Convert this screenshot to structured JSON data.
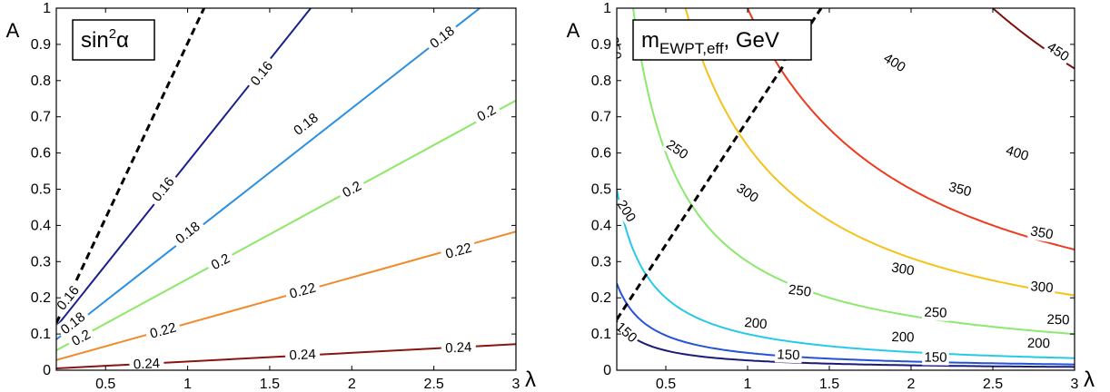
{
  "chart_data": [
    {
      "type": "contour",
      "title": "sin²α",
      "title_parts": {
        "base": "sin",
        "sup": "2",
        "tail": "α"
      },
      "xlabel": "λ",
      "ylabel": "A",
      "xlim": [
        0.2,
        3
      ],
      "ylim": [
        0,
        1
      ],
      "xticks": [
        "0.5",
        "1",
        "1.5",
        "2",
        "2.5",
        "3"
      ],
      "xtick_values": [
        0.5,
        1,
        1.5,
        2,
        2.5,
        3
      ],
      "yticks": [
        "0",
        "0.1",
        "0.2",
        "0.3",
        "0.4",
        "0.5",
        "0.6",
        "0.7",
        "0.8",
        "0.9",
        "1"
      ],
      "ytick_values": [
        0,
        0.1,
        0.2,
        0.3,
        0.4,
        0.5,
        0.6,
        0.7,
        0.8,
        0.9,
        1
      ],
      "dashed_boundary": [
        [
          0.2,
          0.13
        ],
        [
          1.1,
          1.0
        ]
      ],
      "contours": [
        {
          "level": "0.16",
          "color": "#1b1f8c",
          "points": [
            [
              0.2,
              0.12
            ],
            [
              1.75,
              1.0
            ]
          ],
          "labels": [
            {
              "text": "0.16",
              "x": 0.27,
              "y": 0.2
            },
            {
              "text": "0.16",
              "x": 0.85,
              "y": 0.5
            },
            {
              "text": "0.16",
              "x": 1.45,
              "y": 0.82
            }
          ]
        },
        {
          "level": "0.18",
          "color": "#2b8fe0",
          "points": [
            [
              0.2,
              0.085
            ],
            [
              2.78,
              1.0
            ]
          ],
          "labels": [
            {
              "text": "0.18",
              "x": 0.3,
              "y": 0.13
            },
            {
              "text": "0.18",
              "x": 1.0,
              "y": 0.38
            },
            {
              "text": "0.18",
              "x": 1.72,
              "y": 0.68
            },
            {
              "text": "0.18",
              "x": 2.55,
              "y": 0.92
            }
          ]
        },
        {
          "level": "0.2",
          "color": "#8de86a",
          "points": [
            [
              0.2,
              0.055
            ],
            [
              3.0,
              0.745
            ]
          ],
          "labels": [
            {
              "text": "0.2",
              "x": 0.35,
              "y": 0.09
            },
            {
              "text": "0.2",
              "x": 1.2,
              "y": 0.3
            },
            {
              "text": "0.2",
              "x": 2.0,
              "y": 0.5
            },
            {
              "text": "0.2",
              "x": 2.82,
              "y": 0.71
            }
          ]
        },
        {
          "level": "0.22",
          "color": "#f08a2a",
          "points": [
            [
              0.2,
              0.028
            ],
            [
              3.0,
              0.383
            ]
          ],
          "labels": [
            {
              "text": "0.22",
              "x": 0.85,
              "y": 0.11
            },
            {
              "text": "0.22",
              "x": 1.7,
              "y": 0.22
            },
            {
              "text": "0.22",
              "x": 2.65,
              "y": 0.33
            }
          ]
        },
        {
          "level": "0.24",
          "color": "#8a1410",
          "points": [
            [
              0.2,
              0.005
            ],
            [
              3.0,
              0.072
            ]
          ],
          "labels": [
            {
              "text": "0.24",
              "x": 0.75,
              "y": 0.018
            },
            {
              "text": "0.24",
              "x": 1.7,
              "y": 0.043
            },
            {
              "text": "0.24",
              "x": 2.65,
              "y": 0.063
            }
          ]
        }
      ]
    },
    {
      "type": "contour",
      "title": "m_EWPT,eff, GeV",
      "title_parts": {
        "base": "m",
        "sub": "EWPT,eff",
        "tail": ", GeV"
      },
      "xlabel": "λ",
      "ylabel": "A",
      "xlim": [
        0.2,
        3
      ],
      "ylim": [
        0,
        1
      ],
      "xticks": [
        "0.5",
        "1",
        "1.5",
        "2",
        "2.5",
        "3"
      ],
      "xtick_values": [
        0.5,
        1,
        1.5,
        2,
        2.5,
        3
      ],
      "yticks": [
        "0",
        "0.1",
        "0.2",
        "0.3",
        "0.4",
        "0.5",
        "0.6",
        "0.7",
        "0.8",
        "0.9",
        "1"
      ],
      "ytick_values": [
        0,
        0.1,
        0.2,
        0.3,
        0.4,
        0.5,
        0.6,
        0.7,
        0.8,
        0.9,
        1
      ],
      "dashed_boundary": [
        [
          0.2,
          0.14
        ],
        [
          1.45,
          1.0
        ]
      ],
      "contours": [
        {
          "level": "150",
          "color": "#1a1a78",
          "n": 0.0272,
          "labels": [
            {
              "text": "150",
              "x": 0.26,
              "y": 0.105
            },
            {
              "text": "150",
              "x": 1.25,
              "y": 0.043
            },
            {
              "text": "150",
              "x": 2.15,
              "y": 0.036
            }
          ]
        },
        {
          "level": "200",
          "color": "#2452d8",
          "n": 0.048,
          "labels": [
            {
              "text": "200",
              "x": 0.26,
              "y": 0.44
            },
            {
              "text": "200",
              "x": 1.05,
              "y": 0.13
            },
            {
              "text": "200",
              "x": 1.95,
              "y": 0.092
            },
            {
              "text": "200",
              "x": 2.78,
              "y": 0.075
            }
          ]
        },
        {
          "level": "250",
          "color": "#27c9e8",
          "n": 0.1,
          "labels": [
            {
              "text": "250",
              "x": 0.19,
              "y": 0.89
            },
            {
              "text": "250",
              "x": 0.57,
              "y": 0.61
            },
            {
              "text": "250",
              "x": 1.32,
              "y": 0.22
            },
            {
              "text": "250",
              "x": 2.15,
              "y": 0.16
            },
            {
              "text": "250",
              "x": 2.9,
              "y": 0.14
            }
          ]
        },
        {
          "level": "300",
          "color": "#8ce86e",
          "n": 0.3,
          "labels": [
            {
              "text": "300",
              "x": 1.0,
              "y": 0.49
            },
            {
              "text": "300",
              "x": 1.95,
              "y": 0.28
            },
            {
              "text": "300",
              "x": 2.8,
              "y": 0.23
            }
          ]
        },
        {
          "level": "350",
          "color": "#f5c21c",
          "n": 0.62,
          "labels": [
            {
              "text": "350",
              "x": 1.2,
              "y": 0.88
            },
            {
              "text": "350",
              "x": 2.3,
              "y": 0.5
            },
            {
              "text": "350",
              "x": 2.8,
              "y": 0.38
            }
          ]
        },
        {
          "level": "400",
          "color": "#ee3b1f",
          "n": 1.0,
          "labels": [
            {
              "text": "400",
              "x": 1.9,
              "y": 0.85
            },
            {
              "text": "400",
              "x": 2.65,
              "y": 0.6
            }
          ]
        },
        {
          "level": "450",
          "color": "#7a1010",
          "n": 2.5,
          "labels": [
            {
              "text": "450",
              "x": 2.9,
              "y": 0.88
            }
          ]
        }
      ]
    }
  ]
}
